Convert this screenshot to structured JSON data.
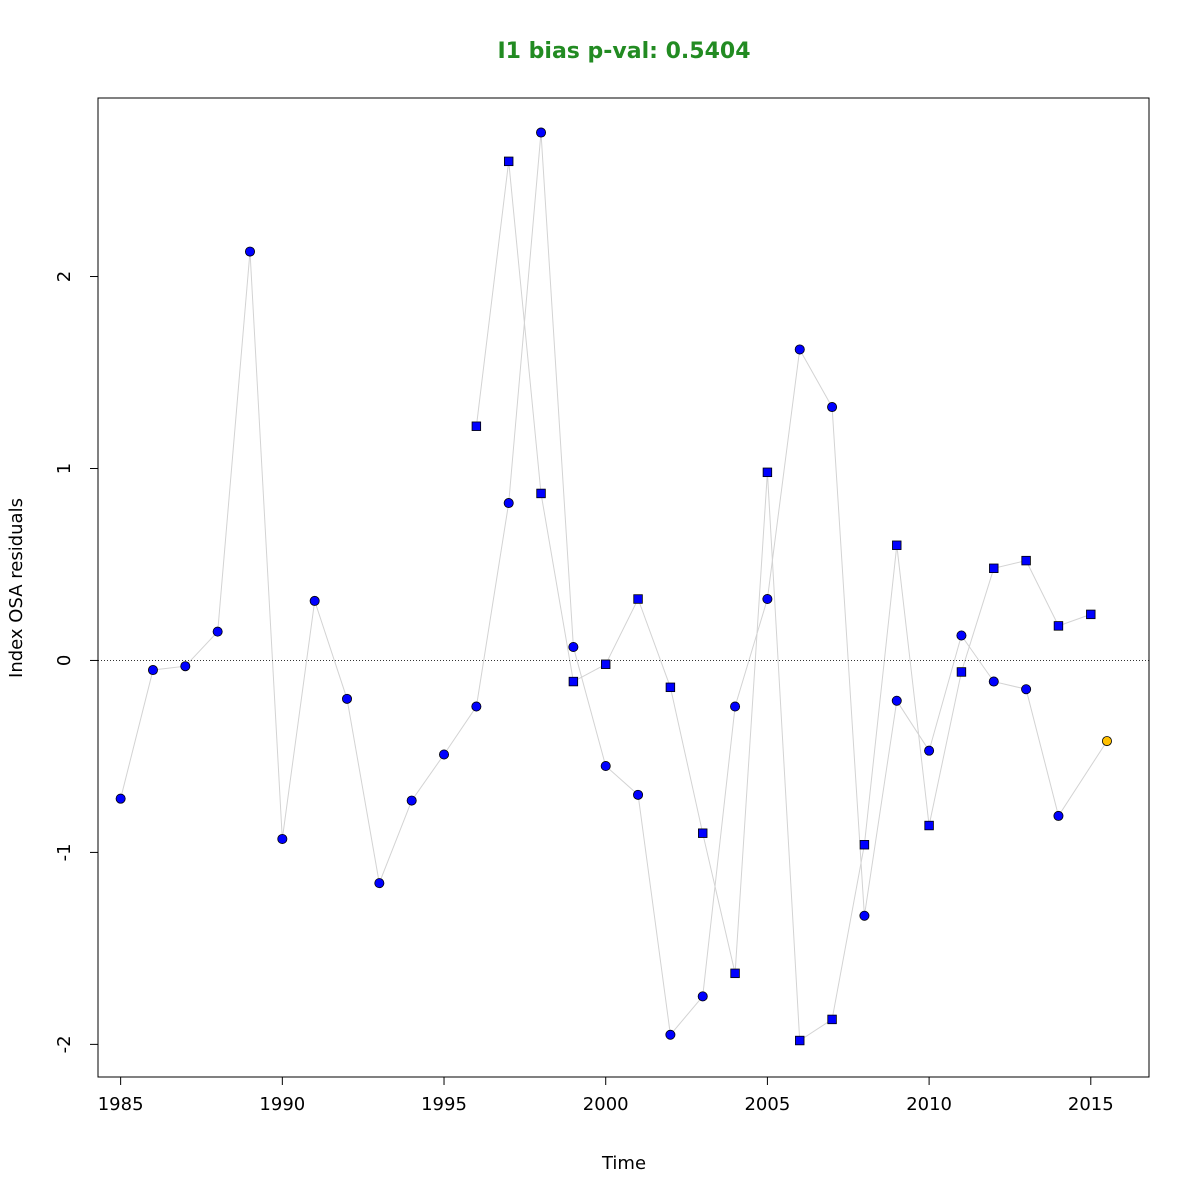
{
  "chart_data": {
    "type": "scatter",
    "title": "I1 bias p-val: 0.5404",
    "title_color": "#228B22",
    "xlabel": "Time",
    "ylabel": "Index OSA residuals",
    "xlim": [
      1984.3,
      2016.8
    ],
    "ylim": [
      -2.17,
      2.93
    ],
    "xticks": [
      1985,
      1990,
      1995,
      2000,
      2005,
      2010,
      2015
    ],
    "yticks": [
      -2,
      -1,
      0,
      1,
      2
    ],
    "reference_line_y": 0,
    "grid": false,
    "line_color": "#d3d3d3",
    "point_color": "#0000ff",
    "highlight_color": "#ffc000",
    "series": [
      {
        "marker": "circle",
        "x": [
          1985,
          1986,
          1987,
          1988,
          1989,
          1990,
          1991,
          1992,
          1993,
          1994,
          1995,
          1996,
          1997,
          1998,
          1999,
          2000,
          2001,
          2002,
          2003,
          2004,
          2005,
          2006,
          2007,
          2008,
          2009,
          2010,
          2011,
          2012,
          2013,
          2014,
          2015.5
        ],
        "y": [
          -0.72,
          -0.05,
          -0.03,
          0.15,
          2.13,
          -0.93,
          0.31,
          -0.2,
          -1.16,
          -0.73,
          -0.49,
          -0.24,
          0.82,
          2.75,
          0.07,
          -0.55,
          -0.7,
          -1.95,
          -1.75,
          -0.24,
          0.32,
          1.62,
          1.32,
          -1.33,
          -0.21,
          -0.47,
          0.13,
          -0.11,
          -0.15,
          -0.81,
          -0.42
        ],
        "highlight_last": true
      },
      {
        "marker": "square",
        "x": [
          1996,
          1997,
          1998,
          1999,
          2000,
          2001,
          2002,
          2003,
          2004,
          2005,
          2006,
          2007,
          2008,
          2009,
          2010,
          2011,
          2012,
          2013,
          2014,
          2015
        ],
        "y": [
          1.22,
          2.6,
          0.87,
          -0.11,
          -0.02,
          0.32,
          -0.14,
          -0.9,
          -1.63,
          0.98,
          -1.98,
          -1.87,
          -0.96,
          0.6,
          -0.86,
          -0.06,
          0.48,
          0.52,
          0.18,
          0.24
        ],
        "highlight_last": false
      }
    ]
  }
}
